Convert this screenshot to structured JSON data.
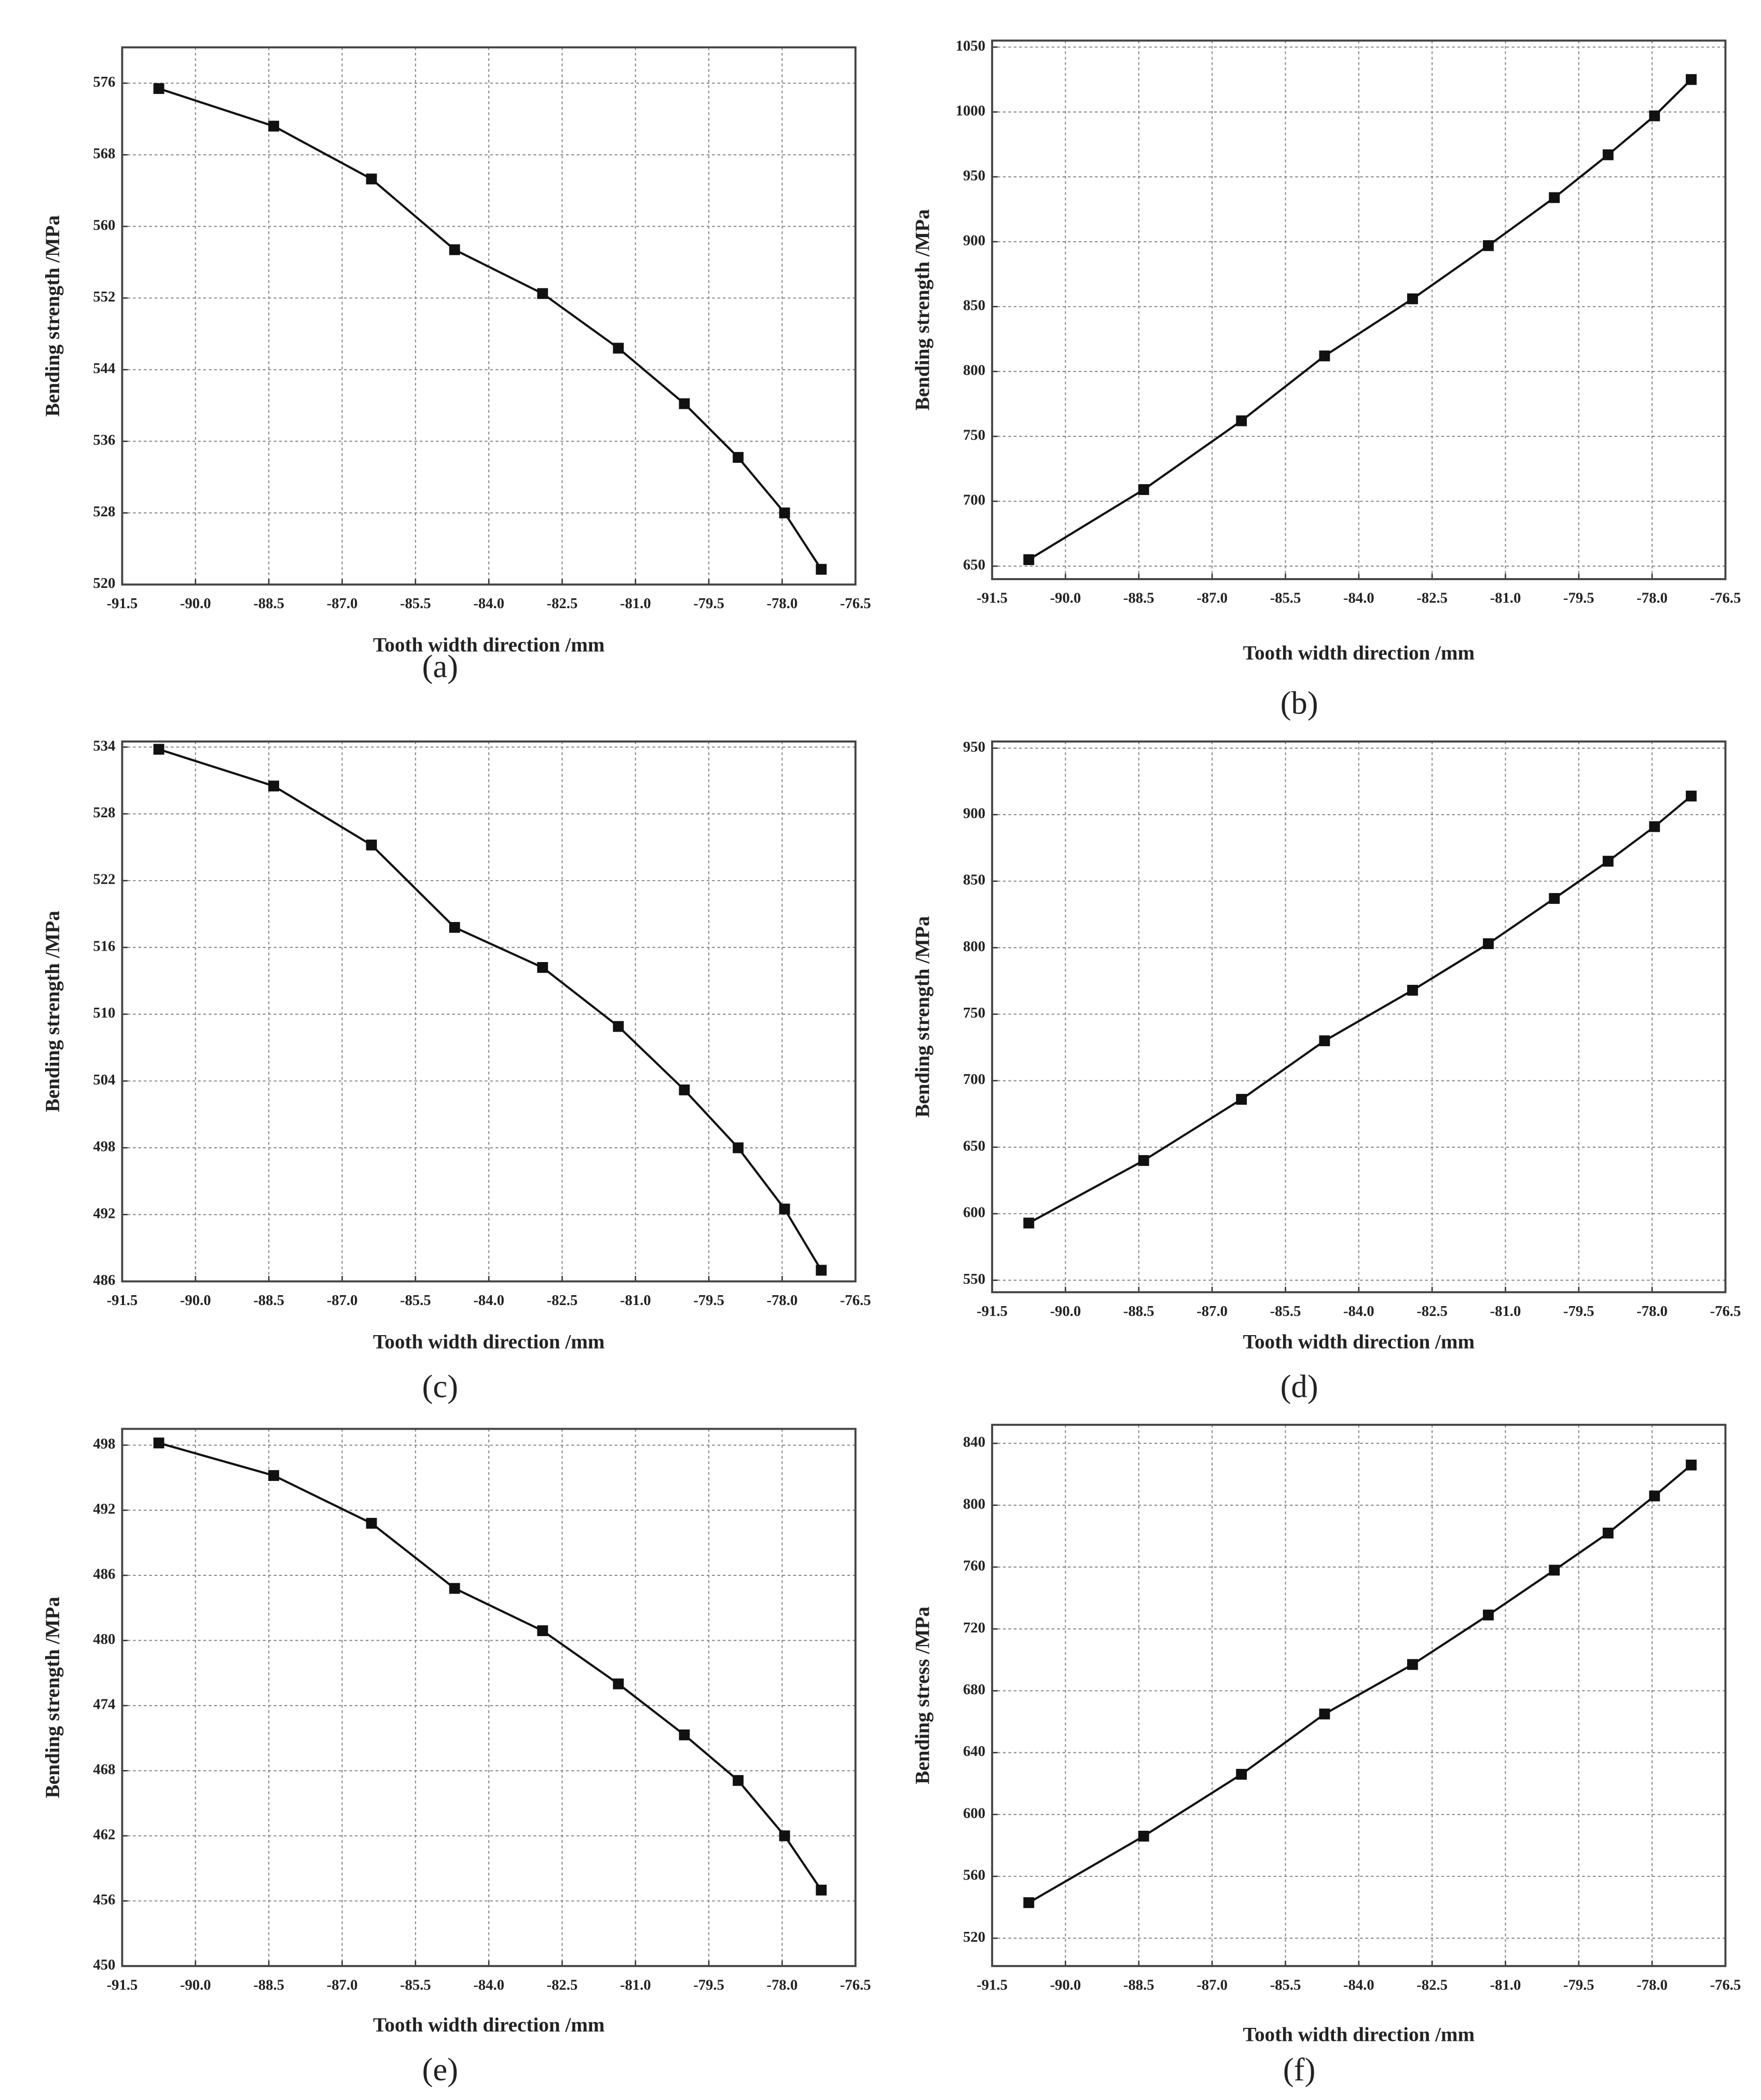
{
  "chart_data": [
    {
      "type": "line",
      "caption": "(a)",
      "x_label": "Tooth width direction /mm",
      "y_label": "Bending strength /MPa",
      "x": [
        -90.75,
        -88.4,
        -86.4,
        -84.7,
        -82.9,
        -81.35,
        -80.0,
        -78.9,
        -77.95,
        -77.2
      ],
      "values": [
        575.4,
        571.2,
        565.3,
        557.4,
        552.5,
        546.4,
        540.2,
        534.2,
        528,
        521.7
      ],
      "color": "#111111",
      "xlim": [
        -91.5,
        -76.5
      ],
      "xticks": [
        -91.5,
        {
          "value": -90,
          "label": "-90.0"
        },
        -88.5,
        {
          "value": -87,
          "label": "-87.0"
        },
        -85.5,
        {
          "value": -84,
          "label": "-84.0"
        },
        -82.5,
        {
          "value": -81,
          "label": "-81.0"
        },
        -79.5,
        {
          "value": -78,
          "label": "-78.0"
        },
        -76.5
      ],
      "ylim": [
        520,
        580
      ],
      "yticks": [
        520,
        528,
        536,
        544,
        552,
        560,
        568,
        576
      ],
      "grid": true
    },
    {
      "type": "line",
      "caption": "(b)",
      "x_label": "Tooth width direction /mm",
      "y_label": "Bending strength /MPa",
      "x": [
        -90.75,
        -88.4,
        -86.4,
        -84.7,
        -82.9,
        -81.35,
        -80.0,
        -78.9,
        -77.95,
        -77.2
      ],
      "values": [
        655,
        709,
        762,
        812,
        856,
        897,
        934,
        967,
        997,
        1025
      ],
      "color": "#111111",
      "xlim": [
        -91.5,
        -76.5
      ],
      "xticks": [
        -91.5,
        {
          "value": -90,
          "label": "-90.0"
        },
        -88.5,
        {
          "value": -87,
          "label": "-87.0"
        },
        -85.5,
        {
          "value": -84,
          "label": "-84.0"
        },
        -82.5,
        {
          "value": -81,
          "label": "-81.0"
        },
        -79.5,
        {
          "value": -78,
          "label": "-78.0"
        },
        -76.5
      ],
      "ylim": [
        640,
        1055
      ],
      "yticks": [
        650,
        700,
        750,
        800,
        850,
        900,
        950,
        1000,
        1050
      ],
      "grid": true
    },
    {
      "type": "line",
      "caption": "(c)",
      "x_label": "Tooth width direction /mm",
      "y_label": "Bending strength /MPa",
      "x": [
        -90.75,
        -88.4,
        -86.4,
        -84.7,
        -82.9,
        -81.35,
        -80.0,
        -78.9,
        -77.95,
        -77.2
      ],
      "values": [
        533.8,
        530.5,
        525.2,
        517.8,
        514.2,
        508.9,
        503.2,
        498.0,
        492.5,
        487.0
      ],
      "color": "#111111",
      "xlim": [
        -91.5,
        -76.5
      ],
      "xticks": [
        -91.5,
        {
          "value": -90,
          "label": "-90.0"
        },
        -88.5,
        {
          "value": -87,
          "label": "-87.0"
        },
        -85.5,
        {
          "value": -84,
          "label": "-84.0"
        },
        -82.5,
        {
          "value": -81,
          "label": "-81.0"
        },
        -79.5,
        {
          "value": -78,
          "label": "-78.0"
        },
        -76.5
      ],
      "ylim": [
        486,
        534.5
      ],
      "yticks": [
        486,
        492,
        498,
        504,
        510,
        516,
        522,
        528,
        534
      ],
      "grid": true
    },
    {
      "type": "line",
      "caption": "(d)",
      "x_label": "Tooth width direction /mm",
      "y_label": "Bending strength /MPa",
      "x": [
        -90.75,
        -88.4,
        -86.4,
        -84.7,
        -82.9,
        -81.35,
        -80.0,
        -78.9,
        -77.95,
        -77.2
      ],
      "values": [
        593,
        640,
        686,
        730,
        768,
        803,
        837,
        865,
        891,
        914
      ],
      "color": "#111111",
      "xlim": [
        -91.5,
        -76.5
      ],
      "xticks": [
        -91.5,
        {
          "value": -90,
          "label": "-90.0"
        },
        -88.5,
        {
          "value": -87,
          "label": "-87.0"
        },
        -85.5,
        {
          "value": -84,
          "label": "-84.0"
        },
        -82.5,
        {
          "value": -81,
          "label": "-81.0"
        },
        -79.5,
        {
          "value": -78,
          "label": "-78.0"
        },
        -76.5
      ],
      "ylim": [
        541,
        955
      ],
      "yticks": [
        550,
        600,
        650,
        700,
        750,
        800,
        850,
        900,
        950
      ],
      "grid": true
    },
    {
      "type": "line",
      "caption": "(e)",
      "x_label": "Tooth width direction /mm",
      "y_label": "Bending strength /MPa",
      "x": [
        -90.75,
        -88.4,
        -86.4,
        -84.7,
        -82.9,
        -81.35,
        -80.0,
        -78.9,
        -77.95,
        -77.2
      ],
      "values": [
        498.2,
        495.2,
        490.8,
        484.8,
        480.9,
        476.0,
        471.3,
        467.1,
        462.0,
        457.0
      ],
      "color": "#111111",
      "xlim": [
        -91.5,
        -76.5
      ],
      "xticks": [
        -91.5,
        {
          "value": -90,
          "label": "-90.0"
        },
        -88.5,
        {
          "value": -87,
          "label": "-87.0"
        },
        -85.5,
        {
          "value": -84,
          "label": "-84.0"
        },
        -82.5,
        {
          "value": -81,
          "label": "-81.0"
        },
        -79.5,
        {
          "value": -78,
          "label": "-78.0"
        },
        -76.5
      ],
      "ylim": [
        450,
        499.5
      ],
      "yticks": [
        450,
        456,
        462,
        468,
        474,
        480,
        486,
        492,
        498
      ],
      "grid": true
    },
    {
      "type": "line",
      "caption": "(f)",
      "x_label": "Tooth width direction /mm",
      "y_label": "Bending stress /MPa",
      "x": [
        -90.75,
        -88.4,
        -86.4,
        -84.7,
        -82.9,
        -81.35,
        -80.0,
        -78.9,
        -77.95,
        -77.2
      ],
      "values": [
        543,
        586,
        626,
        665,
        697,
        729,
        758,
        782,
        806,
        826
      ],
      "color": "#111111",
      "xlim": [
        -91.5,
        -76.5
      ],
      "xticks": [
        -91.5,
        {
          "value": -90,
          "label": "-90.0"
        },
        -88.5,
        {
          "value": -87,
          "label": "-87.0"
        },
        -85.5,
        {
          "value": -84,
          "label": "-84.0"
        },
        -82.5,
        {
          "value": -81,
          "label": "-81.0"
        },
        -79.5,
        {
          "value": -78,
          "label": "-78.0"
        },
        -76.5
      ],
      "ylim": [
        502,
        852
      ],
      "yticks": [
        520,
        560,
        600,
        640,
        680,
        720,
        760,
        800,
        840
      ],
      "grid": true
    }
  ]
}
